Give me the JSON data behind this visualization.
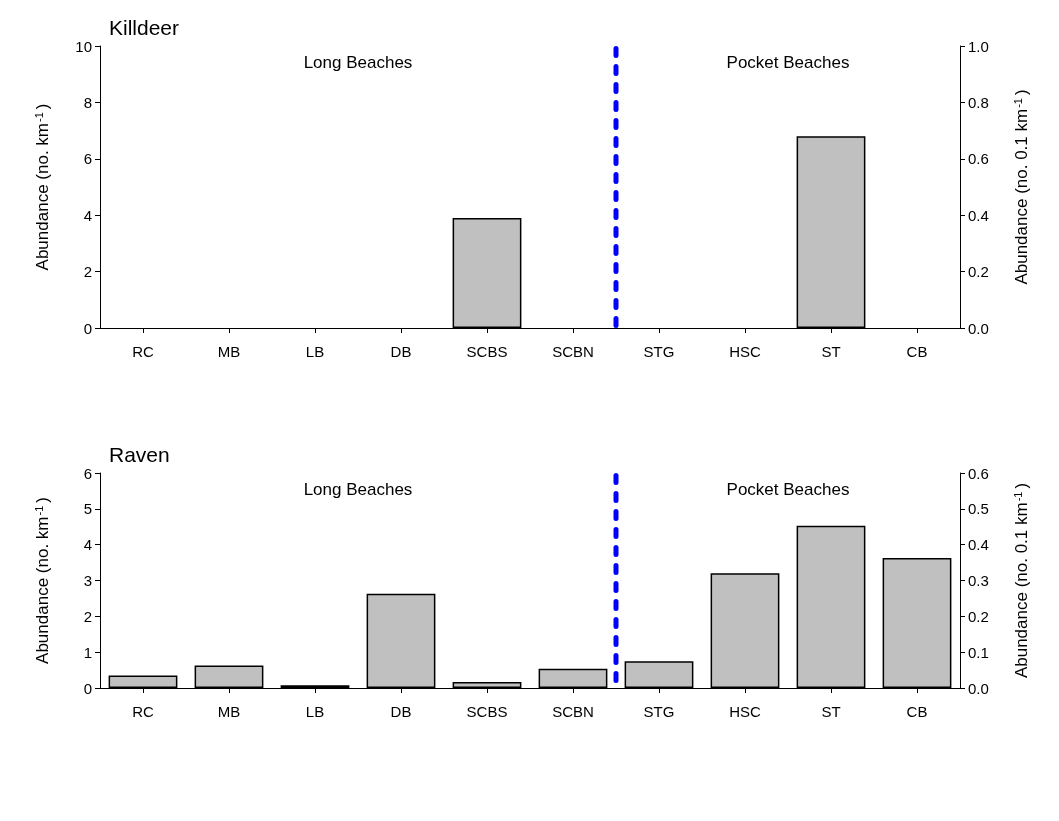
{
  "chart_data": [
    {
      "type": "bar",
      "title": "Killdeer",
      "categories": [
        "RC",
        "MB",
        "LB",
        "DB",
        "SCBS",
        "SCBN",
        "STG",
        "HSC",
        "ST",
        "CB"
      ],
      "series": [
        {
          "color": "#c0c0c0",
          "values": [
            0,
            0,
            0,
            0,
            3.9,
            0,
            0,
            0,
            6.8,
            0
          ]
        }
      ],
      "ylabel": "Abundance (no. km$^{-1}$)",
      "y2label": "Abundance (no. 0.1 km$^{-1}$)",
      "ylim": [
        0,
        10
      ],
      "yticks": [
        0,
        2,
        4,
        6,
        8,
        10
      ],
      "y2lim": [
        0,
        1
      ],
      "y2ticks": [
        {
          "value": 0,
          "label": "0.0"
        },
        {
          "value": 0.2,
          "label": "0.2"
        },
        {
          "value": 0.4,
          "label": "0.4"
        },
        {
          "value": 0.6,
          "label": "0.6"
        },
        {
          "value": 0.8,
          "label": "0.8"
        },
        {
          "value": 1,
          "label": "1.0"
        }
      ],
      "annotations": [
        "Long Beaches",
        "Pocket Beaches"
      ],
      "grid": false
    },
    {
      "type": "bar",
      "title": "Raven",
      "categories": [
        "RC",
        "MB",
        "LB",
        "DB",
        "SCBS",
        "SCBN",
        "STG",
        "HSC",
        "ST",
        "CB"
      ],
      "series": [
        {
          "color": "#c0c0c0",
          "values": [
            0.35,
            0.63,
            0.08,
            2.63,
            0.17,
            0.54,
            0.75,
            3.2,
            4.53,
            3.63
          ]
        }
      ],
      "ylabel": "Abundance (no. km$^{-1}$)",
      "y2label": "Abundance (no. 0.1 km$^{-1}$)",
      "ylim": [
        0,
        6
      ],
      "yticks": [
        0,
        1,
        2,
        3,
        4,
        5,
        6
      ],
      "y2lim": [
        0,
        0.6
      ],
      "y2ticks": [
        {
          "value": 0,
          "label": "0.0"
        },
        {
          "value": 0.1,
          "label": "0.1"
        },
        {
          "value": 0.2,
          "label": "0.2"
        },
        {
          "value": 0.3,
          "label": "0.3"
        },
        {
          "value": 0.4,
          "label": "0.4"
        },
        {
          "value": 0.5,
          "label": "0.5"
        },
        {
          "value": 0.6,
          "label": "0.6"
        }
      ],
      "annotations": [
        "Long Beaches",
        "Pocket Beaches"
      ],
      "grid": false
    }
  ]
}
